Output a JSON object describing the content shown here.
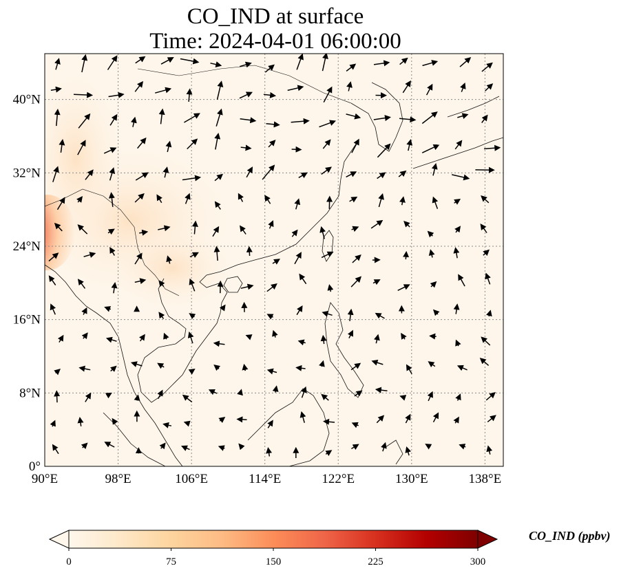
{
  "title": {
    "line1": "CO_IND at surface",
    "line2": "Time: 2024-04-01 06:00:00"
  },
  "map": {
    "projection": "PlateCarree",
    "lon_range": [
      90,
      140
    ],
    "lat_range": [
      0,
      45
    ],
    "gridlines": "dotted gray",
    "lon_ticks": [
      "90°E",
      "98°E",
      "106°E",
      "114°E",
      "122°E",
      "130°E",
      "138°E"
    ],
    "lon_tick_values": [
      90,
      98,
      106,
      114,
      122,
      130,
      138
    ],
    "lat_ticks": [
      "0°",
      "8°N",
      "16°N",
      "24°N",
      "32°N",
      "40°N"
    ],
    "lat_tick_values": [
      0,
      8,
      16,
      24,
      32,
      40
    ],
    "field_hotspot": {
      "lon": 90.3,
      "lat": 25.5,
      "note_color": "#a40f0f"
    }
  },
  "colorbar": {
    "label": "CO_IND (ppbv)",
    "ticks": [
      "0",
      "75",
      "150",
      "225",
      "300"
    ],
    "tick_values": [
      0,
      75,
      150,
      225,
      300
    ],
    "range": [
      0,
      300
    ],
    "colormap": "OrRd",
    "colors": [
      "#fff7ec",
      "#fee8c8",
      "#fdd49e",
      "#fdbb84",
      "#fc8d59",
      "#ef6548",
      "#d7301f",
      "#b30000",
      "#7f0000"
    ]
  }
}
